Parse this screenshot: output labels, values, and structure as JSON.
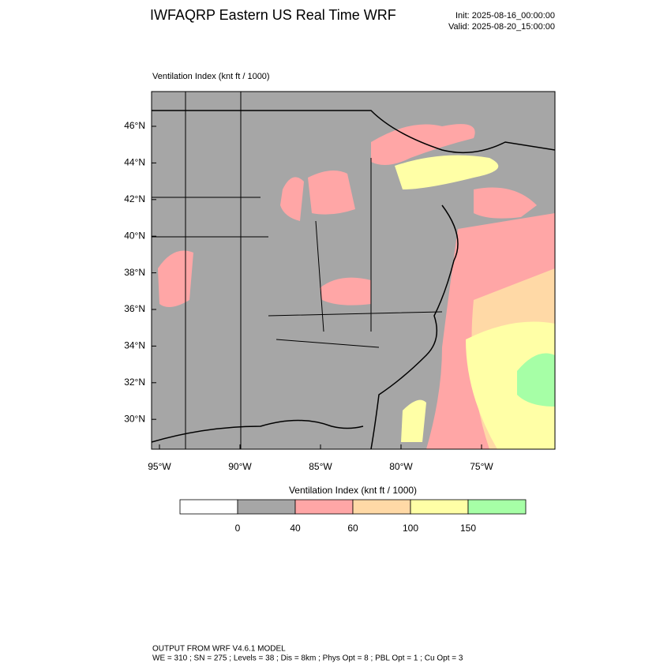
{
  "header": {
    "title": "IWFAQRP Eastern US Real Time WRF",
    "init": "Init: 2025-08-16_00:00:00",
    "valid": "Valid: 2025-08-20_15:00:00"
  },
  "map": {
    "title": "Ventilation Index   (knt ft / 1000)",
    "lat_labels": [
      "46°N",
      "44°N",
      "42°N",
      "40°N",
      "38°N",
      "36°N",
      "34°N",
      "32°N",
      "30°N"
    ],
    "lon_labels": [
      "95°W",
      "90°W",
      "85°W",
      "80°W",
      "75°W"
    ]
  },
  "colorbar": {
    "title": "Ventilation Index  (knt ft / 1000)",
    "levels": [
      0,
      40,
      60,
      100,
      150
    ],
    "colors": [
      "#ffffff",
      "#a6a6a6",
      "#ffa6a6",
      "#ffd9a6",
      "#ffffa6",
      "#a6ffa6"
    ]
  },
  "footer": {
    "line1": "OUTPUT FROM WRF V4.6.1 MODEL",
    "line2": "WE = 310 ; SN = 275 ; Levels = 38 ; Dis = 8km ; Phys Opt = 8 ; PBL Opt = 1 ; Cu Opt = 3"
  }
}
